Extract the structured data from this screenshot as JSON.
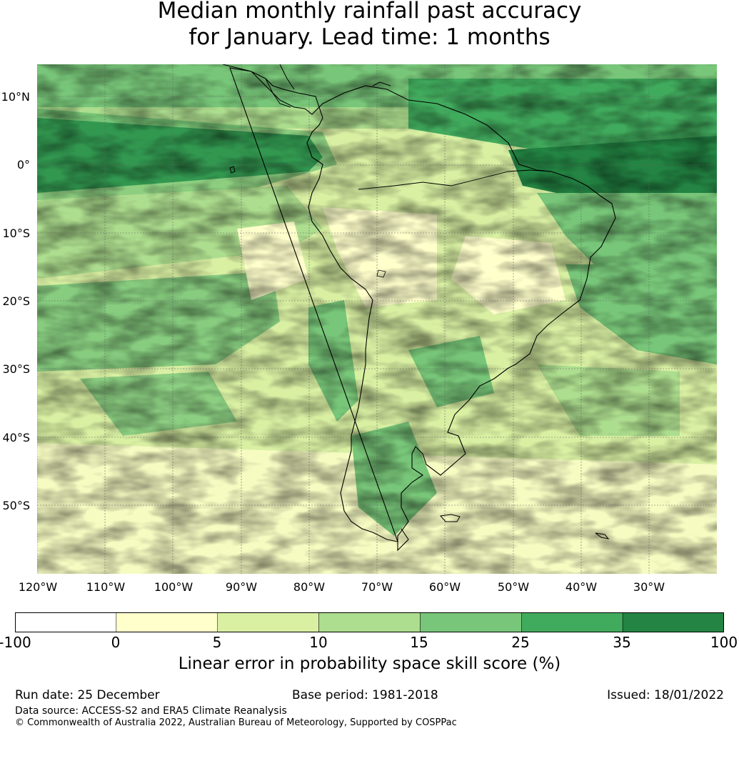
{
  "title": {
    "line1": "Median monthly rainfall past accuracy",
    "line2": "for January. Lead time: 1 months"
  },
  "map": {
    "region": "South America",
    "lat_labels": [
      "10°N",
      "0°",
      "10°S",
      "20°S",
      "30°S",
      "40°S",
      "50°S"
    ],
    "lon_labels": [
      "120°W",
      "110°W",
      "100°W",
      "90°W",
      "80°W",
      "70°W",
      "60°W",
      "50°W",
      "40°W",
      "30°W"
    ]
  },
  "colorbar": {
    "ticks": [
      "-100",
      "0",
      "5",
      "10",
      "15",
      "25",
      "35",
      "100"
    ],
    "colors": [
      "#ffffff",
      "#ffffcc",
      "#d9f0a3",
      "#addd8e",
      "#78c679",
      "#41ab5d",
      "#238443"
    ],
    "label": "Linear error in probability space skill score (%)"
  },
  "footer": {
    "run_date": "Run date: 25 December",
    "base_period": "Base period: 1981-2018",
    "issued": "Issued: 18/01/2022",
    "data_source": "Data source: ACCESS-S2 and ERA5 Climate Reanalysis",
    "copyright": "© Commonwealth of Australia 2022, Australian Bureau of Meteorology, Supported by COSPPac"
  }
}
